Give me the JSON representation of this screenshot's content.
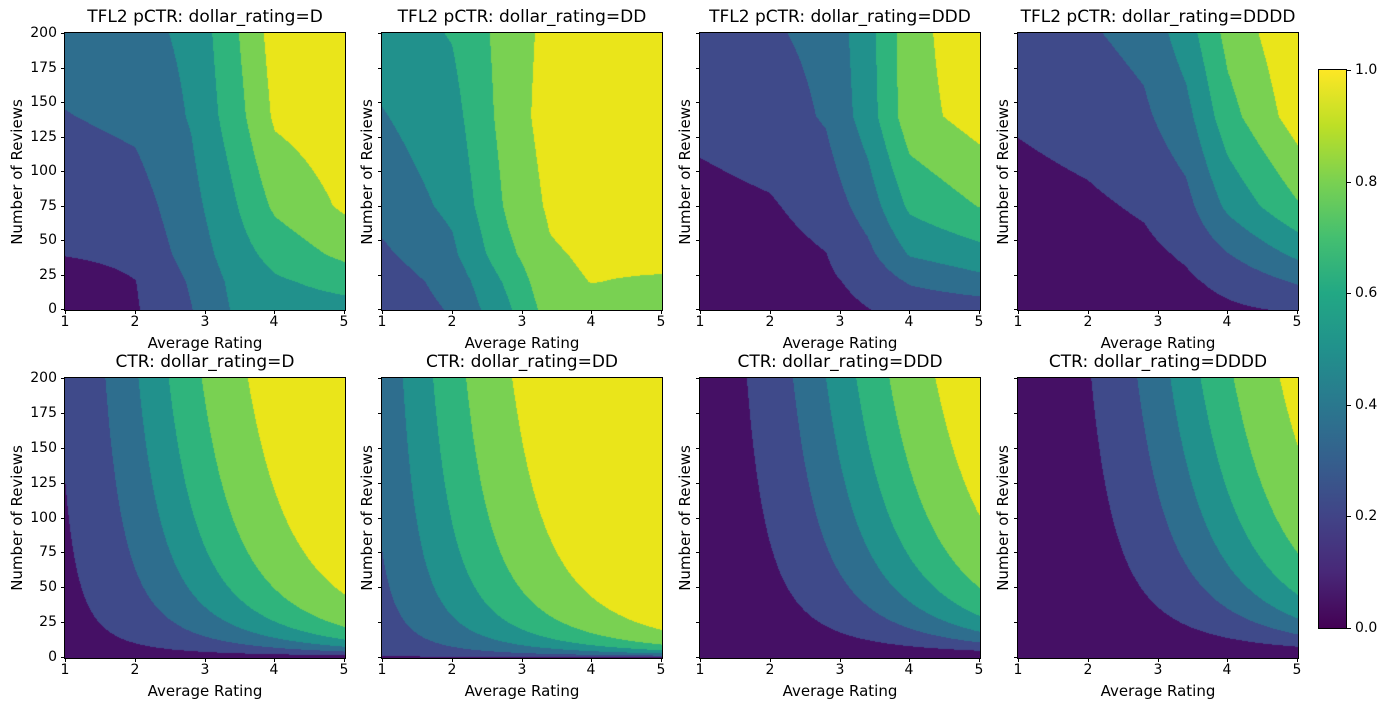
{
  "chart_data": {
    "type": "contour",
    "grid": {
      "rows": 2,
      "cols": 4
    },
    "x": {
      "label": "Average Rating",
      "range": [
        1,
        5
      ],
      "ticks": [
        1,
        2,
        3,
        4,
        5
      ]
    },
    "y": {
      "label": "Number of Reviews",
      "range": [
        0,
        200
      ],
      "ticks": [
        0,
        25,
        50,
        75,
        100,
        125,
        150,
        175,
        200
      ],
      "tick_labels_first_column_only": true
    },
    "levels": [
      0,
      0.1429,
      0.2857,
      0.4286,
      0.5714,
      0.7143,
      0.8571,
      1.0
    ],
    "band_colors": [
      "#451065",
      "#3f4a8a",
      "#2e6e8e",
      "#21918c",
      "#2fb47c",
      "#79d152",
      "#eae51a"
    ],
    "colorbar": {
      "min": 0,
      "max": 1,
      "tick_labels": [
        "1.0",
        "0.8",
        "0.6",
        "0.4",
        "0.2",
        "0.0"
      ],
      "tick_values": [
        1.0,
        0.8,
        0.6,
        0.4,
        0.2,
        0.0
      ],
      "gradient_top_to_bottom": [
        "#fde725",
        "#bddf26",
        "#7ad151",
        "#44bf70",
        "#22a884",
        "#21918c",
        "#2a788e",
        "#355f8d",
        "#414487",
        "#482878",
        "#440154"
      ]
    },
    "plots": [
      {
        "row": 0,
        "col": 0,
        "title": "TFL2 pCTR: dollar_rating=D",
        "surface": {
          "kind": "grid_bilinear",
          "r": [
            1,
            2,
            2.8,
            3.4,
            4,
            5
          ],
          "n": [
            0,
            20,
            40,
            75,
            140,
            200
          ],
          "values": [
            [
              0.05,
              0.13,
              0.28,
              0.44,
              0.5,
              0.52
            ],
            [
              0.06,
              0.14,
              0.3,
              0.46,
              0.55,
              0.62
            ],
            [
              0.15,
              0.18,
              0.34,
              0.5,
              0.62,
              0.75
            ],
            [
              0.18,
              0.22,
              0.38,
              0.55,
              0.74,
              0.88
            ],
            [
              0.28,
              0.32,
              0.44,
              0.64,
              0.88,
              0.95
            ],
            [
              0.35,
              0.38,
              0.46,
              0.68,
              0.92,
              0.98
            ]
          ]
        }
      },
      {
        "row": 0,
        "col": 1,
        "title": "TFL2 pCTR: dollar_rating=DD",
        "surface": {
          "kind": "grid_bilinear",
          "r": [
            1,
            2,
            2.8,
            3.4,
            4,
            5
          ],
          "n": [
            0,
            20,
            40,
            75,
            140,
            200
          ],
          "values": [
            [
              0.18,
              0.3,
              0.55,
              0.78,
              0.8,
              0.8
            ],
            [
              0.2,
              0.34,
              0.6,
              0.82,
              0.86,
              0.84
            ],
            [
              0.26,
              0.4,
              0.68,
              0.84,
              0.88,
              0.9
            ],
            [
              0.34,
              0.46,
              0.74,
              0.88,
              0.93,
              0.95
            ],
            [
              0.42,
              0.52,
              0.78,
              0.92,
              0.96,
              0.97
            ],
            [
              0.5,
              0.58,
              0.78,
              0.9,
              0.97,
              0.99
            ]
          ]
        }
      },
      {
        "row": 0,
        "col": 2,
        "title": "TFL2 pCTR: dollar_rating=DDD",
        "surface": {
          "kind": "grid_bilinear",
          "r": [
            1,
            2,
            2.8,
            3.4,
            4,
            5
          ],
          "n": [
            0,
            20,
            40,
            75,
            140,
            200
          ],
          "values": [
            [
              0.03,
              0.05,
              0.1,
              0.14,
              0.18,
              0.2
            ],
            [
              0.04,
              0.07,
              0.12,
              0.18,
              0.3,
              0.38
            ],
            [
              0.06,
              0.09,
              0.14,
              0.25,
              0.44,
              0.52
            ],
            [
              0.1,
              0.13,
              0.2,
              0.35,
              0.6,
              0.72
            ],
            [
              0.18,
              0.22,
              0.3,
              0.5,
              0.8,
              0.92
            ],
            [
              0.24,
              0.27,
              0.32,
              0.52,
              0.8,
              0.97
            ]
          ]
        }
      },
      {
        "row": 0,
        "col": 3,
        "title": "TFL2 pCTR: dollar_rating=DDDD",
        "surface": {
          "kind": "grid_bilinear",
          "r": [
            1,
            2,
            2.8,
            3.4,
            4,
            5
          ],
          "n": [
            0,
            20,
            40,
            75,
            140,
            200
          ],
          "values": [
            [
              0.02,
              0.04,
              0.07,
              0.09,
              0.12,
              0.16
            ],
            [
              0.03,
              0.05,
              0.09,
              0.12,
              0.18,
              0.3
            ],
            [
              0.05,
              0.08,
              0.11,
              0.16,
              0.28,
              0.46
            ],
            [
              0.09,
              0.12,
              0.16,
              0.24,
              0.46,
              0.7
            ],
            [
              0.16,
              0.2,
              0.26,
              0.38,
              0.66,
              0.93
            ],
            [
              0.24,
              0.27,
              0.33,
              0.5,
              0.76,
              0.98
            ]
          ]
        }
      },
      {
        "row": 1,
        "col": 0,
        "title": "CTR: dollar_rating=D",
        "surface": {
          "kind": "sigmoid_ctr",
          "baseline": 3,
          "formula": "ctr = 1 / (1 + exp(baseline - avg_rating * log1p(num_reviews) / 4))"
        }
      },
      {
        "row": 1,
        "col": 1,
        "title": "CTR: dollar_rating=DD",
        "surface": {
          "kind": "sigmoid_ctr",
          "baseline": 2,
          "formula": "ctr = 1 / (1 + exp(baseline - avg_rating * log1p(num_reviews) / 4))"
        }
      },
      {
        "row": 1,
        "col": 2,
        "title": "CTR: dollar_rating=DDD",
        "surface": {
          "kind": "sigmoid_ctr",
          "baseline": 4,
          "formula": "ctr = 1 / (1 + exp(baseline - avg_rating * log1p(num_reviews) / 4))"
        }
      },
      {
        "row": 1,
        "col": 3,
        "title": "CTR: dollar_rating=DDDD",
        "surface": {
          "kind": "sigmoid_ctr",
          "baseline": 4.5,
          "formula": "ctr = 1 / (1 + exp(baseline - avg_rating * log1p(num_reviews) / 4))"
        }
      }
    ]
  }
}
